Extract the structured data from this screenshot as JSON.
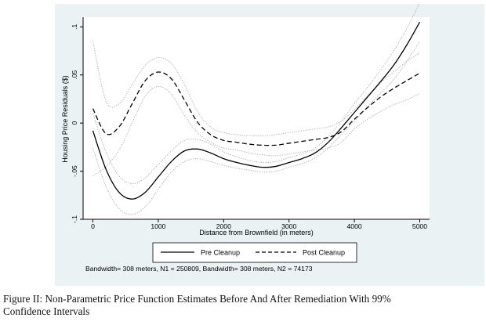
{
  "chart_data": {
    "type": "line",
    "xlabel": "Distance from Brownfield (in meters)",
    "ylabel": "Housing Price Residuals ($)",
    "xticks": [
      "0",
      "1000",
      "2000",
      "3000",
      "4000",
      "5000"
    ],
    "yticks": [
      "-.1",
      "-.05",
      "0",
      ".05",
      ".1"
    ],
    "xlim": [
      -150,
      5150
    ],
    "ylim": [
      -0.1,
      0.11
    ],
    "grid": false,
    "legend_position": "bottom",
    "note": "Bandwidth= 308 meters, N1 = 250809, Bandwidth= 308 meters, N2 = 74173",
    "x": [
      0,
      200,
      400,
      600,
      800,
      1000,
      1200,
      1400,
      1600,
      1800,
      2000,
      2200,
      2400,
      2600,
      2800,
      3000,
      3200,
      3400,
      3600,
      3800,
      4000,
      4200,
      4400,
      4600,
      4800,
      5000
    ],
    "series": [
      {
        "name": "Pre Cleanup",
        "style": "solid",
        "values": [
          -0.008,
          -0.048,
          -0.072,
          -0.079,
          -0.072,
          -0.056,
          -0.04,
          -0.029,
          -0.027,
          -0.031,
          -0.037,
          -0.041,
          -0.044,
          -0.046,
          -0.045,
          -0.041,
          -0.037,
          -0.031,
          -0.02,
          -0.005,
          0.011,
          0.027,
          0.043,
          0.06,
          0.081,
          0.105
        ],
        "ci_upper": [
          0.01,
          -0.03,
          -0.055,
          -0.063,
          -0.057,
          -0.043,
          -0.029,
          -0.018,
          -0.017,
          -0.022,
          -0.03,
          -0.035,
          -0.039,
          -0.041,
          -0.04,
          -0.036,
          -0.032,
          -0.026,
          -0.014,
          0.002,
          0.02,
          0.037,
          0.055,
          0.075,
          0.098,
          0.125
        ],
        "ci_lower": [
          -0.026,
          -0.066,
          -0.089,
          -0.095,
          -0.087,
          -0.069,
          -0.051,
          -0.04,
          -0.037,
          -0.04,
          -0.044,
          -0.047,
          -0.049,
          -0.051,
          -0.05,
          -0.046,
          -0.042,
          -0.036,
          -0.026,
          -0.012,
          0.002,
          0.017,
          0.031,
          0.045,
          0.064,
          0.085
        ]
      },
      {
        "name": "Post Cleanup",
        "style": "dashed",
        "values": [
          0.015,
          -0.011,
          -0.004,
          0.02,
          0.044,
          0.053,
          0.046,
          0.024,
          0.001,
          -0.012,
          -0.018,
          -0.02,
          -0.022,
          -0.023,
          -0.023,
          -0.021,
          -0.019,
          -0.017,
          -0.015,
          -0.009,
          0.004,
          0.016,
          0.027,
          0.036,
          0.044,
          0.052
        ],
        "ci_upper": [
          0.085,
          0.023,
          0.02,
          0.04,
          0.06,
          0.068,
          0.062,
          0.04,
          0.012,
          -0.004,
          -0.01,
          -0.012,
          -0.013,
          -0.013,
          -0.012,
          -0.01,
          -0.008,
          -0.006,
          -0.004,
          0.002,
          0.014,
          0.028,
          0.042,
          0.053,
          0.064,
          0.073
        ],
        "ci_lower": [
          -0.055,
          -0.045,
          -0.028,
          0.0,
          0.028,
          0.038,
          0.03,
          0.008,
          -0.01,
          -0.02,
          -0.026,
          -0.028,
          -0.031,
          -0.033,
          -0.034,
          -0.032,
          -0.03,
          -0.028,
          -0.026,
          -0.02,
          -0.006,
          0.004,
          0.012,
          0.019,
          0.024,
          0.031
        ]
      }
    ]
  },
  "caption": {
    "line1": "Figure II: Non-Parametric Price Function Estimates Before And After Remediation With 99%",
    "line2": "Confidence Intervals"
  }
}
